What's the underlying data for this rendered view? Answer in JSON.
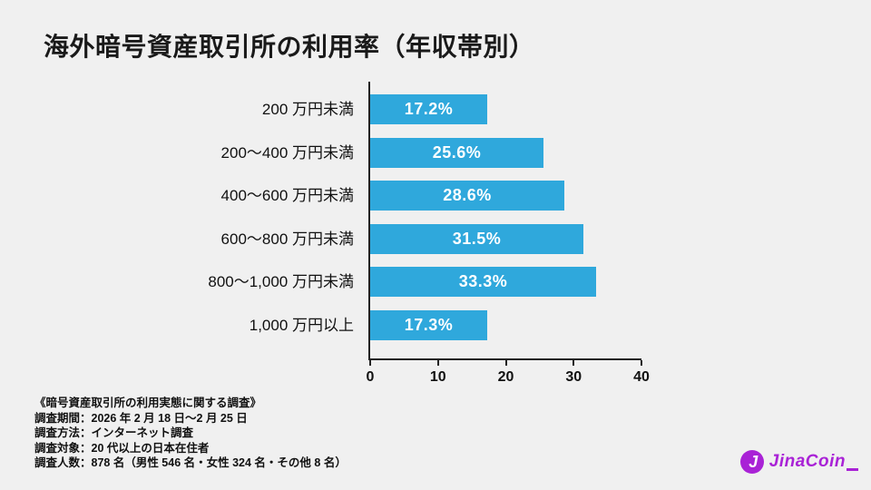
{
  "title": "海外暗号資産取引所の利用率（年収帯別）",
  "chart_data": {
    "type": "bar",
    "orientation": "horizontal",
    "title": "海外暗号資産取引所の利用率（年収帯別）",
    "categories": [
      "200 万円未満",
      "200～400 万円未満",
      "400～600 万円未満",
      "600～800 万円未満",
      "800～1,000 万円未満",
      "1,000 万円以上"
    ],
    "values": [
      17.2,
      25.6,
      28.6,
      31.5,
      33.3,
      17.3
    ],
    "value_labels": [
      "17.2%",
      "25.6%",
      "28.6%",
      "31.5%",
      "33.3%",
      "17.3%"
    ],
    "x_ticks": [
      "0",
      "10",
      "20",
      "30",
      "40"
    ],
    "xlim": [
      0,
      40
    ],
    "xlabel": "",
    "ylabel": "",
    "grid": false,
    "legend": false,
    "bar_color": "#2fa8dc",
    "value_label_color": "#ffffff",
    "axis_color": "#222222"
  },
  "footer": {
    "lines": [
      "《暗号資産取引所の利用実態に関する調査》",
      "調査期間：2026 年 2 月 18 日～2 月 25 日",
      "調査方法：インターネット調査",
      "調査対象：20 代以上の日本在住者",
      "調査人数：878 名（男性 546 名・女性 324 名・その他 8 名）"
    ]
  },
  "logo": {
    "icon_letter": "J",
    "text": "JinaCoin",
    "color": "#a922d6"
  }
}
